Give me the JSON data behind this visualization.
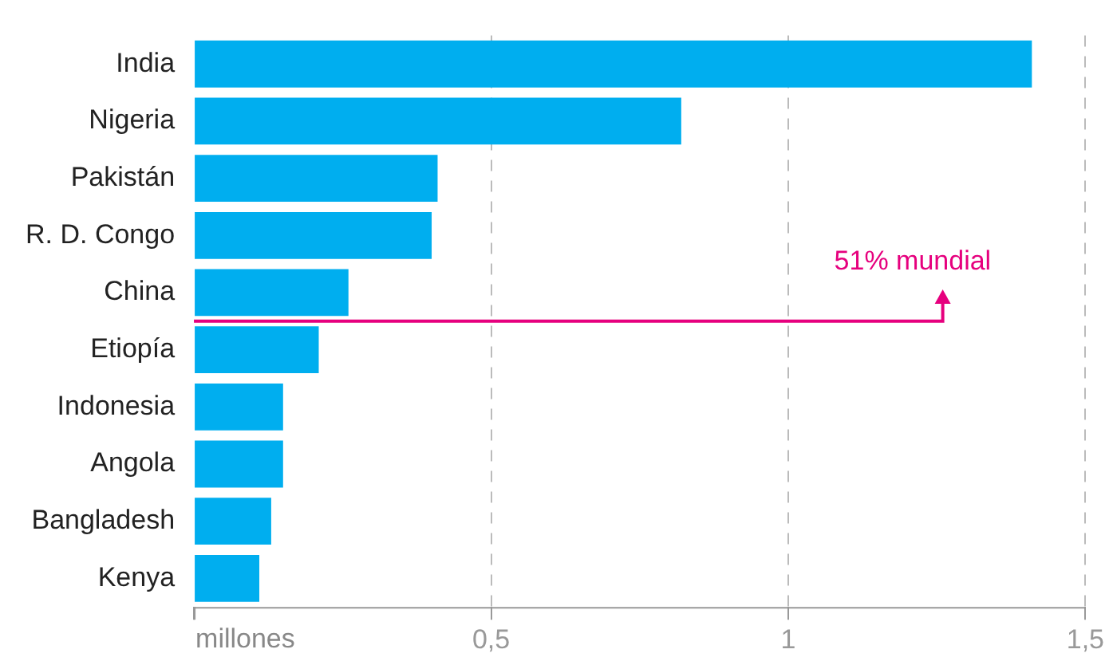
{
  "chart_data": {
    "type": "bar",
    "orientation": "horizontal",
    "categories": [
      "India",
      "Nigeria",
      "Pakistán",
      "R. D. Congo",
      "China",
      "Etiopía",
      "Indonesia",
      "Angola",
      "Bangladesh",
      "Kenya"
    ],
    "values": [
      1.41,
      0.82,
      0.41,
      0.4,
      0.26,
      0.21,
      0.15,
      0.15,
      0.13,
      0.11
    ],
    "color": "#00aeef",
    "xlim": [
      0,
      1.5
    ],
    "xticks": [
      {
        "value": 0,
        "label": null
      },
      {
        "value": 0.5,
        "label": "0,5"
      },
      {
        "value": 1,
        "label": "1"
      },
      {
        "value": 1.5,
        "label": "1,5"
      }
    ],
    "xlabel": "millones",
    "grid": "x",
    "legend": false,
    "annotations": [
      "51% mundial"
    ]
  }
}
